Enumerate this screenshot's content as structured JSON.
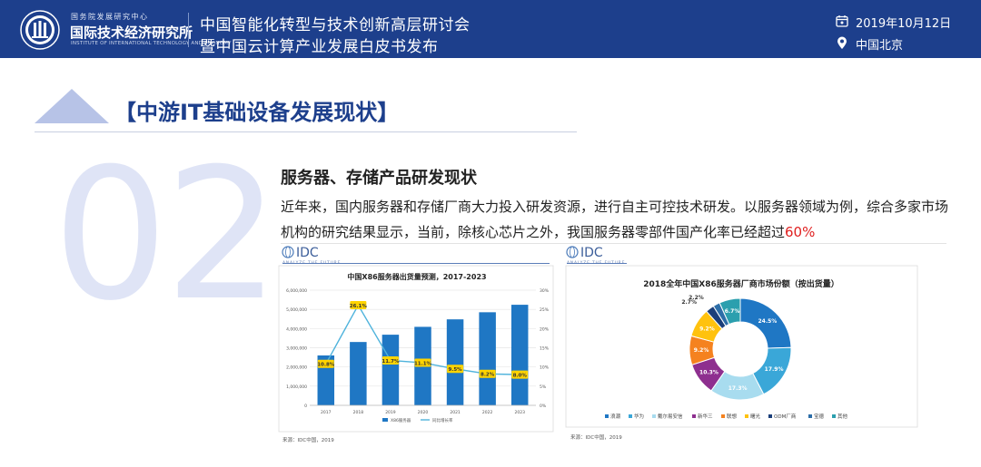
{
  "header": {
    "org_name_small": "国务院发展研究中心",
    "org_name": "国际技术经济研究所",
    "org_name_en": "INSTITUTE OF INTERNATIONAL TECHNOLOGY AND ECONOMY",
    "conference_line1": "中国智能化转型与技术创新高层研讨会",
    "conference_line2": "暨中国云计算产业发展白皮书发布",
    "date": "2019年10月12日",
    "location": "中国北京"
  },
  "section": {
    "title": "【中游IT基础设备发展现状】",
    "number": "02",
    "subtitle": "服务器、存储产品研发现状",
    "body": "近年来，国内服务器和存储厂商大力投入研发资源，进行自主可控技术研发。以服务器领域为例，综合多家市场机构的研究结果显示，当前，除核心芯片之外，我国服务器零部件国产化率已经超过",
    "body_highlight": "60%"
  },
  "chart_data": [
    {
      "type": "bar",
      "logo": "IDC",
      "logo_tagline": "ANALYZE THE FUTURE",
      "title": "中国X86服务器出货量预测，2017-2023",
      "categories": [
        "2017",
        "2018",
        "2019",
        "2020",
        "2021",
        "2022",
        "2023"
      ],
      "series": [
        {
          "name": "X86服务器",
          "type": "bar",
          "axis": "left",
          "values": [
            2600000,
            3300000,
            3680000,
            4090000,
            4480000,
            4850000,
            5240000
          ]
        },
        {
          "name": "同比增长率",
          "type": "line",
          "axis": "right",
          "values": [
            10.8,
            26.1,
            11.7,
            11.1,
            9.5,
            8.2,
            8.0
          ],
          "labels": [
            "10.8%",
            "26.1%",
            "11.7%",
            "11.1%",
            "9.5%",
            "8.2%",
            "8.0%"
          ]
        }
      ],
      "y_left": {
        "min": 0,
        "max": 6000000,
        "ticks": [
          "0",
          "1,000,000",
          "2,000,000",
          "3,000,000",
          "4,000,000",
          "5,000,000",
          "6,000,000"
        ]
      },
      "y_right": {
        "min": 0,
        "max": 30,
        "ticks": [
          "0%",
          "5%",
          "10%",
          "15%",
          "20%",
          "25%",
          "30%"
        ]
      },
      "grid": true,
      "legend": "bottom",
      "colors": {
        "bar": "#1f77c4",
        "line": "#4fb3dc",
        "label_bg": "#ffd400"
      },
      "source": "来源：IDC中国，2019"
    },
    {
      "type": "pie",
      "variant": "donut",
      "logo": "IDC",
      "logo_tagline": "ANALYZE THE FUTURE",
      "title": "2018全年中国X86服务器厂商市场份额（按出货量）",
      "slices": [
        {
          "name": "浪潮",
          "value": 24.5,
          "label": "24.5%",
          "color": "#1f77c4"
        },
        {
          "name": "华为",
          "value": 17.9,
          "label": "17.9%",
          "color": "#3aa7d8"
        },
        {
          "name": "戴尔易安信",
          "value": 17.3,
          "label": "17.3%",
          "color": "#a8dcef"
        },
        {
          "name": "新华三",
          "value": 10.3,
          "label": "10.3%",
          "color": "#8e2f8f"
        },
        {
          "name": "联想",
          "value": 9.2,
          "label": "9.2%",
          "color": "#f5821f"
        },
        {
          "name": "曙光",
          "value": 9.2,
          "label": "9.2%",
          "color": "#ffc20e"
        },
        {
          "name": "ODM厂商",
          "value": 2.7,
          "label": "2.7%",
          "color": "#1b3f7a"
        },
        {
          "name": "宝德",
          "value": 2.2,
          "label": "2.2%",
          "color": "#2d6ea8"
        },
        {
          "name": "其他",
          "value": 6.7,
          "label": "6.7%",
          "color": "#2b9fae"
        }
      ],
      "legend": "bottom",
      "source": "来源：IDC中国，2019"
    }
  ]
}
